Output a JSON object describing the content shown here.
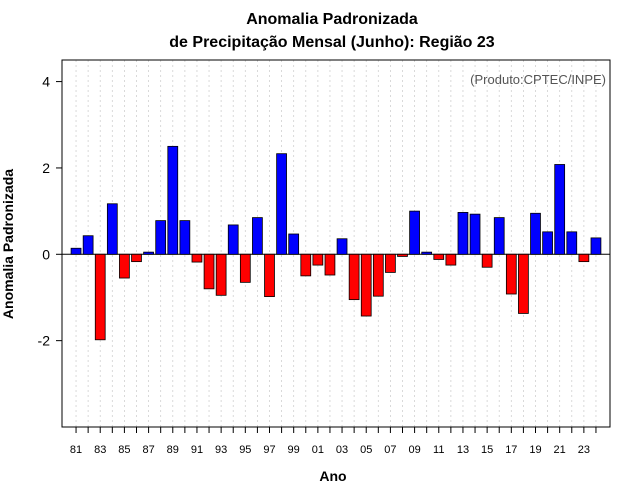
{
  "chart_data": {
    "type": "bar",
    "title_line1": "Anomalia Padronizada",
    "title_line2": "de Precipitação Mensal (Junho): Região 23",
    "xlabel": "Ano",
    "ylabel": "Anomalia Padronizada",
    "annotation": "(Produto:CPTEC/INPE)",
    "ylim": [
      -4,
      4.5
    ],
    "yticks": [
      -2,
      0,
      2,
      4
    ],
    "yticks_labels": [
      "-2",
      "0",
      "2",
      "4"
    ],
    "categories": [
      "81",
      "82",
      "83",
      "84",
      "85",
      "86",
      "87",
      "88",
      "89",
      "90",
      "91",
      "92",
      "93",
      "94",
      "95",
      "96",
      "97",
      "98",
      "99",
      "00",
      "01",
      "02",
      "03",
      "04",
      "05",
      "06",
      "07",
      "08",
      "09",
      "10",
      "11",
      "12",
      "13",
      "14",
      "15",
      "16",
      "17",
      "18",
      "19",
      "20",
      "21",
      "22",
      "23",
      "24"
    ],
    "xtick_labels": [
      "81",
      "83",
      "85",
      "87",
      "89",
      "91",
      "93",
      "95",
      "97",
      "99",
      "01",
      "03",
      "05",
      "07",
      "09",
      "11",
      "13",
      "15",
      "17",
      "19",
      "21",
      "23"
    ],
    "values": [
      0.14,
      0.43,
      -1.98,
      1.17,
      -0.55,
      -0.17,
      0.05,
      0.78,
      2.5,
      0.78,
      -0.18,
      -0.8,
      -0.95,
      0.68,
      -0.65,
      0.85,
      -0.98,
      2.33,
      0.47,
      -0.5,
      -0.25,
      -0.48,
      0.36,
      -1.05,
      -1.43,
      -0.97,
      -0.42,
      -0.05,
      1.0,
      0.05,
      -0.12,
      -0.25,
      0.97,
      0.93,
      -0.3,
      0.85,
      -0.92,
      -1.37,
      0.95,
      0.52,
      2.08,
      0.52,
      -0.17,
      0.38
    ],
    "colors": {
      "positive": "#0000ff",
      "negative": "#ff0000",
      "grid": "#d0d0d0",
      "frame": "#000000"
    },
    "grid": true
  }
}
